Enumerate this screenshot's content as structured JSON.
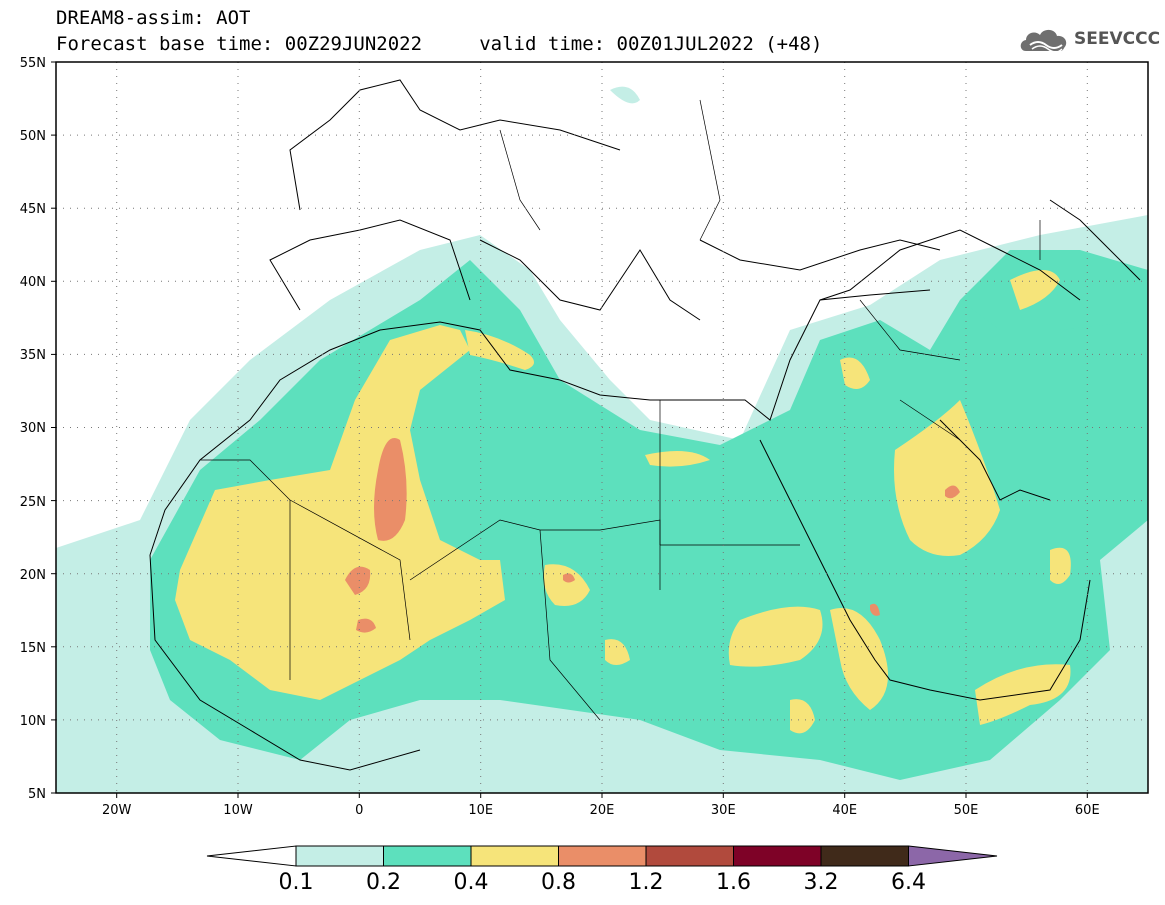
{
  "header": {
    "line1": "DREAM8-assim: AOT",
    "line2": "Forecast base time: 00Z29JUN2022     valid time: 00Z01JUL2022 (+48)"
  },
  "brand": {
    "name": "SEEVCCC",
    "icon": "cloud-logo-icon"
  },
  "map": {
    "lat_labels": [
      "55N",
      "50N",
      "45N",
      "40N",
      "35N",
      "30N",
      "25N",
      "20N",
      "15N",
      "10N",
      "5N"
    ],
    "lon_labels": [
      "20W",
      "10W",
      "0",
      "10E",
      "20E",
      "30E",
      "40E",
      "50E",
      "60E"
    ],
    "lat_range": [
      5,
      55
    ],
    "lon_range": [
      -25,
      65
    ],
    "grid": "dotted"
  },
  "colorbar": {
    "labels": [
      "0.1",
      "0.2",
      "0.4",
      "0.8",
      "1.2",
      "1.6",
      "3.2",
      "6.4"
    ],
    "colors": [
      "#ffffff",
      "#c4eee6",
      "#5de0bd",
      "#f6e47a",
      "#ea8e68",
      "#b14a3d",
      "#7e0227",
      "#402a1a",
      "#8c67a8"
    ]
  }
}
